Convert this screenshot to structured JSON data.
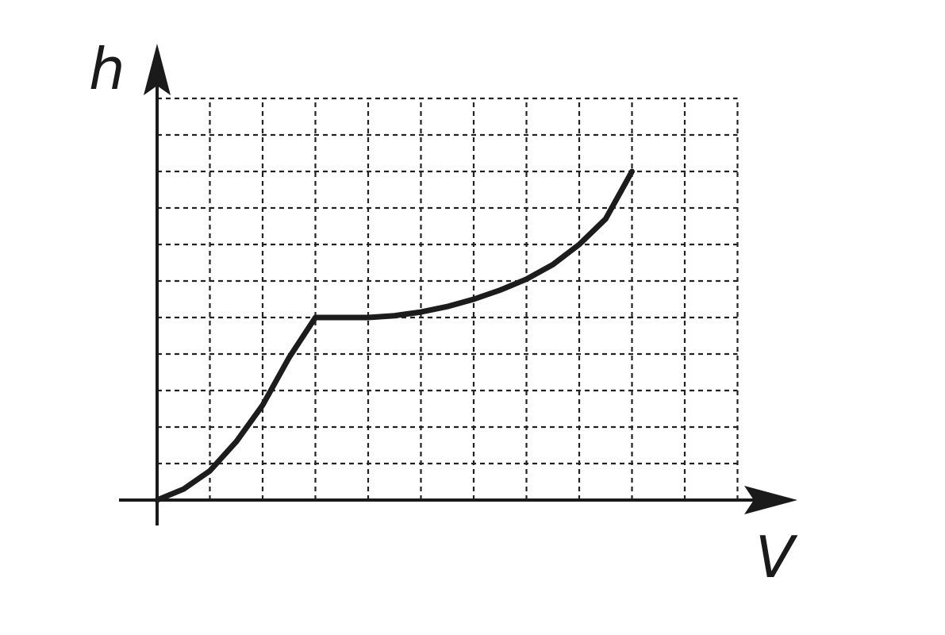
{
  "chart_data": {
    "type": "line",
    "title": "",
    "xlabel": "V",
    "ylabel": "h",
    "xlim": [
      0,
      11
    ],
    "ylim": [
      0,
      11
    ],
    "grid": true,
    "series": [
      {
        "values": [
          [
            0,
            0
          ],
          [
            0.5,
            0.3
          ],
          [
            1,
            0.8
          ],
          [
            1.5,
            1.6
          ],
          [
            2,
            2.6
          ],
          [
            2.5,
            3.9
          ],
          [
            3,
            5
          ],
          [
            3.5,
            5
          ],
          [
            4,
            5
          ],
          [
            4.5,
            5.05
          ],
          [
            5,
            5.15
          ],
          [
            5.5,
            5.3
          ],
          [
            6,
            5.5
          ],
          [
            6.5,
            5.75
          ],
          [
            7,
            6.05
          ],
          [
            7.5,
            6.45
          ],
          [
            8,
            7
          ],
          [
            8.5,
            7.7
          ],
          [
            9,
            9
          ]
        ]
      }
    ]
  }
}
